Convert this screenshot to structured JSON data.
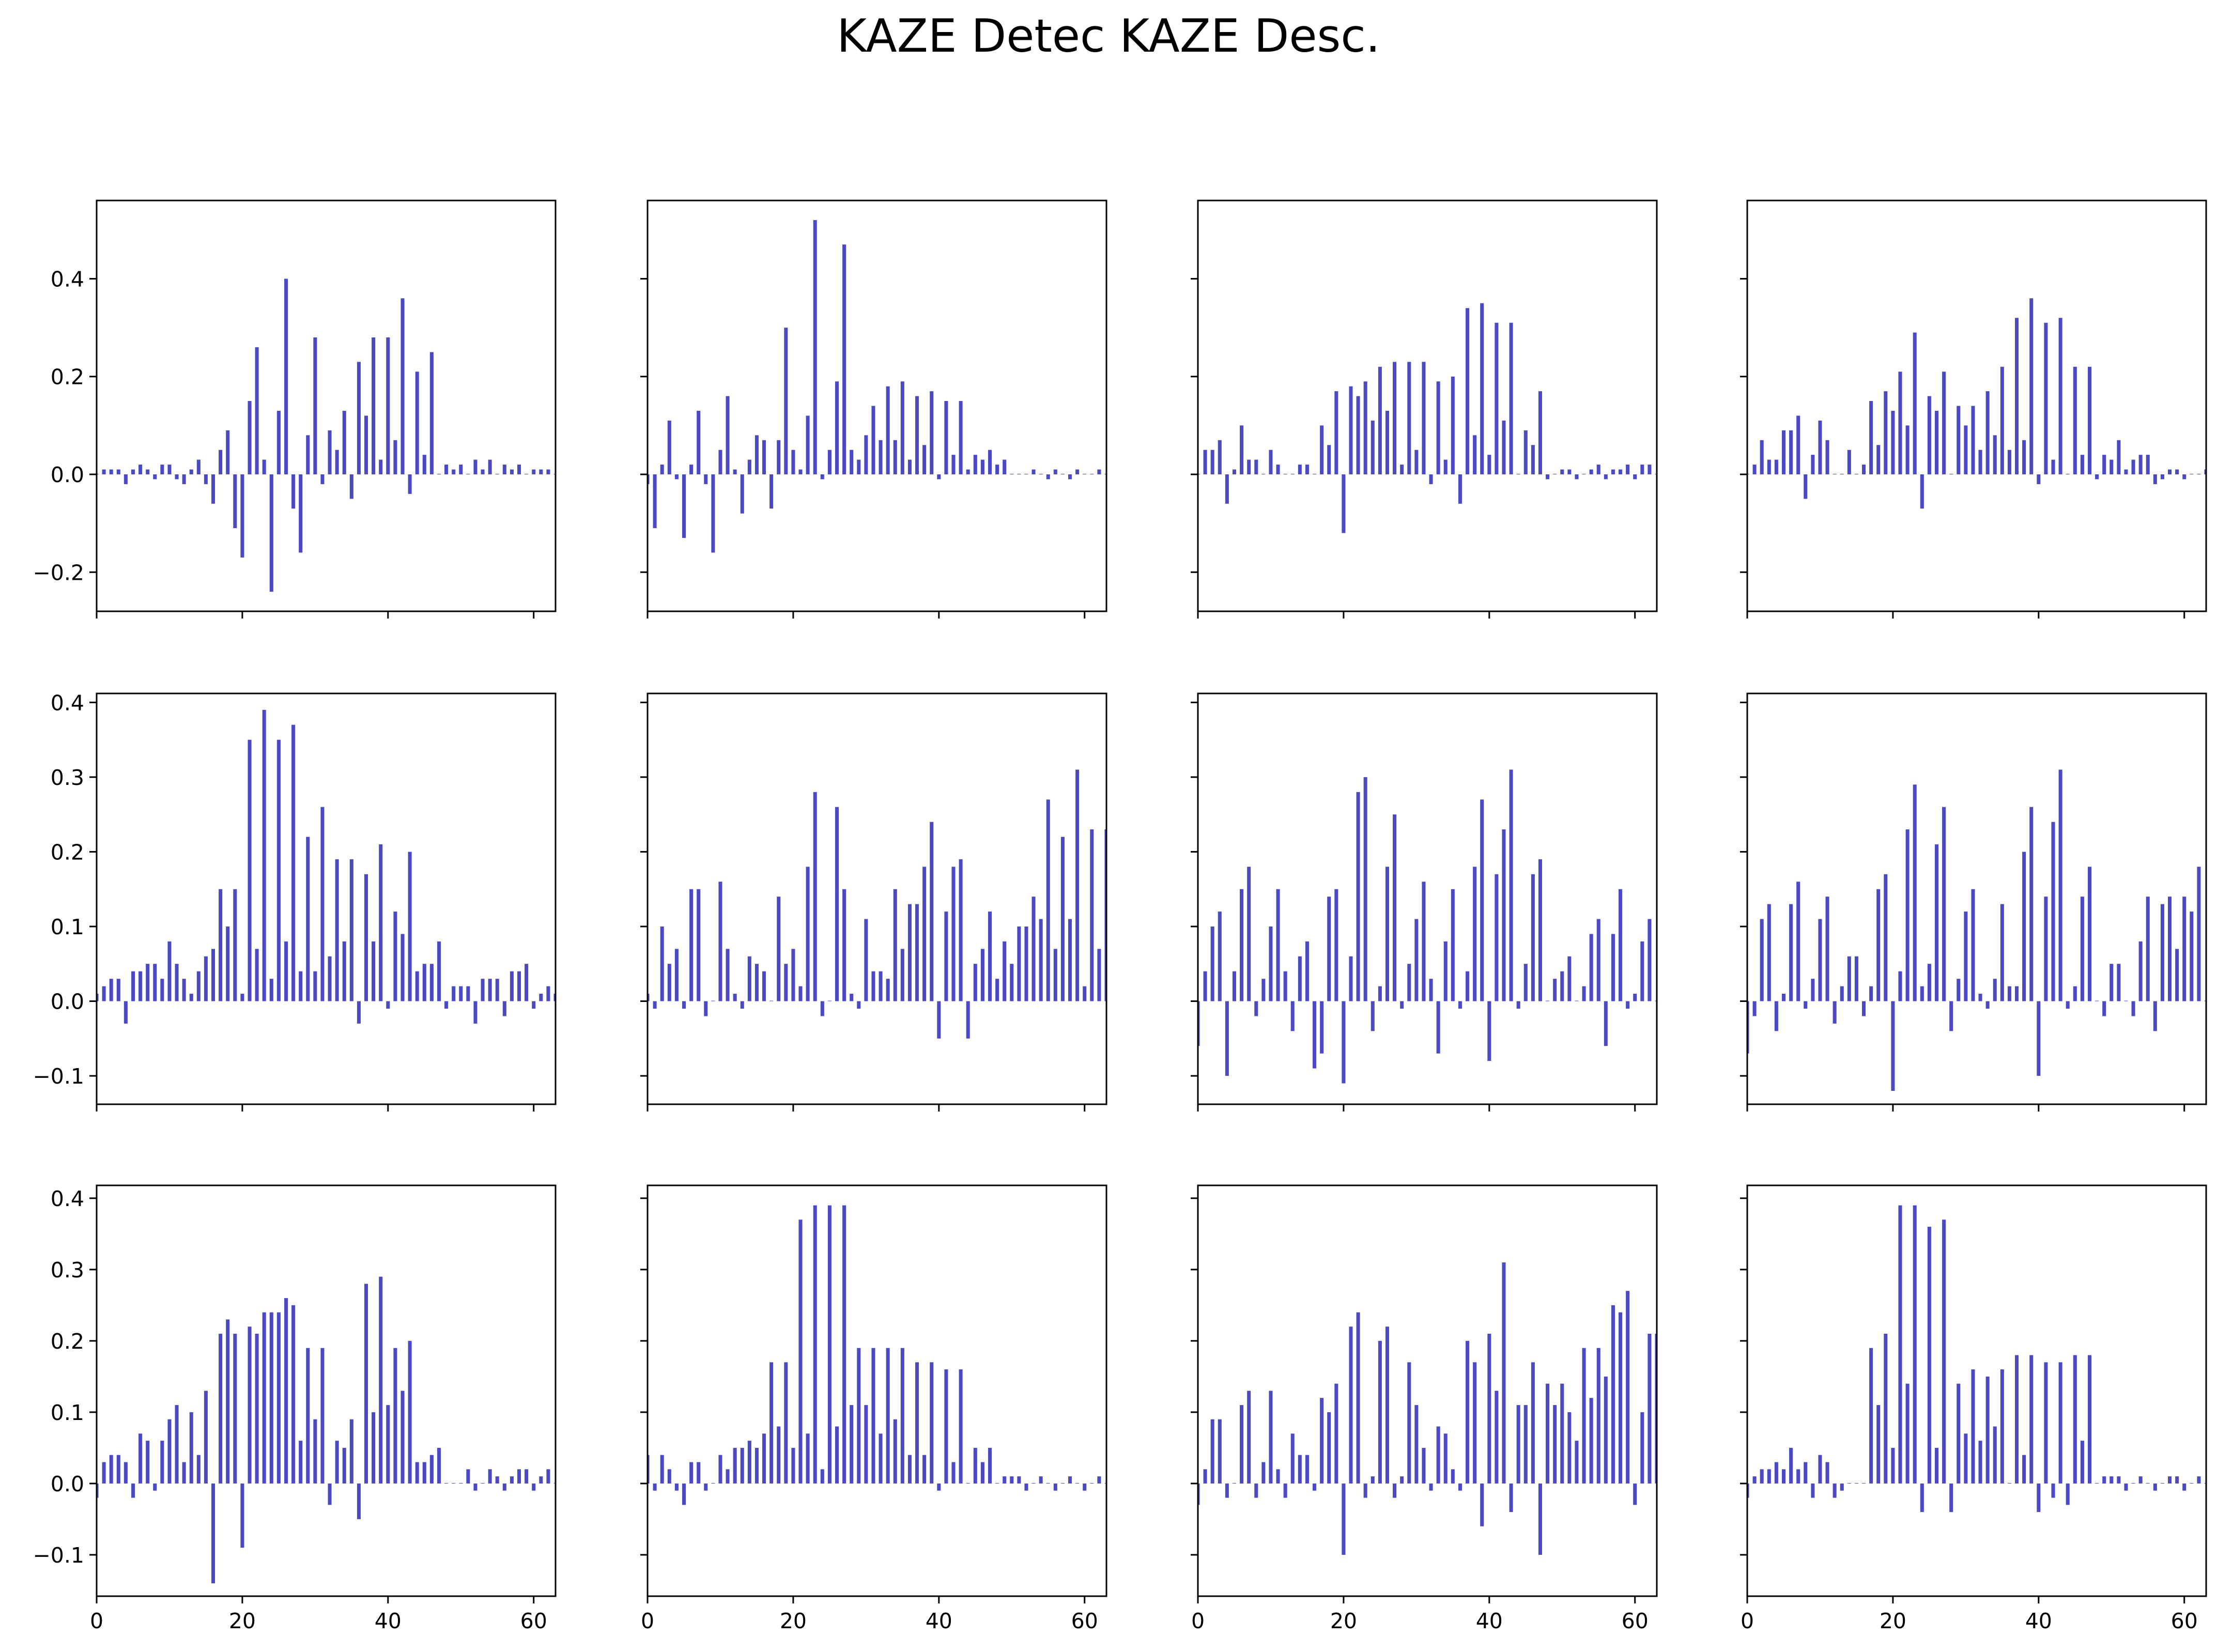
{
  "title": "KAZE Detec KAZE Desc.",
  "colors": {
    "bar": "#4b4ac4",
    "axis": "#000000",
    "background": "#ffffff"
  },
  "chart_data": {
    "type": "bar",
    "title": "KAZE Detec KAZE Desc.",
    "layout": "3 rows x 4 columns of bar subplots; shared x axis per column, shared y axis per row",
    "x": "bin index 0-63",
    "xlim": [
      0,
      63
    ],
    "xticks": [
      0,
      20,
      40,
      60
    ],
    "xtick_labels": [
      "0",
      "20",
      "40",
      "60"
    ],
    "xticklabels_shown_on": "bottom row only",
    "rows": [
      {
        "ylim": [
          -0.28,
          0.56
        ],
        "yticks": [
          -0.2,
          0.0,
          0.2,
          0.4
        ],
        "ytick_labels": [
          "−0.2",
          "0.0",
          "0.2",
          "0.4"
        ]
      },
      {
        "ylim": [
          -0.138,
          0.412
        ],
        "yticks": [
          -0.1,
          0.0,
          0.1,
          0.2,
          0.3,
          0.4
        ],
        "ytick_labels": [
          "−0.1",
          "0.0",
          "0.1",
          "0.2",
          "0.3",
          "0.4"
        ]
      },
      {
        "ylim": [
          -0.158,
          0.418
        ],
        "yticks": [
          -0.1,
          0.0,
          0.1,
          0.2,
          0.3,
          0.4
        ],
        "ytick_labels": [
          "−0.1",
          "0.0",
          "0.1",
          "0.2",
          "0.3",
          "0.4"
        ]
      }
    ],
    "panels": [
      {
        "row": 0,
        "col": 0,
        "values": [
          0.0,
          0.01,
          0.01,
          0.01,
          -0.02,
          0.01,
          0.02,
          0.01,
          -0.01,
          0.02,
          0.02,
          -0.01,
          -0.02,
          0.01,
          0.03,
          -0.02,
          -0.06,
          0.05,
          0.09,
          -0.11,
          -0.17,
          0.15,
          0.26,
          0.03,
          -0.24,
          0.13,
          0.4,
          -0.07,
          -0.16,
          0.08,
          0.28,
          -0.02,
          0.09,
          0.05,
          0.13,
          -0.05,
          0.23,
          0.12,
          0.28,
          0.03,
          0.28,
          0.07,
          0.36,
          -0.04,
          0.21,
          0.04,
          0.25,
          0.0,
          0.02,
          0.01,
          0.02,
          0.0,
          0.03,
          0.01,
          0.03,
          0.0,
          0.02,
          0.01,
          0.02,
          0.0,
          0.01,
          0.01,
          0.01,
          0.0
        ]
      },
      {
        "row": 0,
        "col": 1,
        "values": [
          -0.02,
          -0.11,
          0.02,
          0.11,
          -0.01,
          -0.13,
          0.02,
          0.13,
          -0.02,
          -0.16,
          0.05,
          0.16,
          0.01,
          -0.08,
          0.03,
          0.08,
          0.07,
          -0.07,
          0.07,
          0.3,
          0.05,
          0.01,
          0.12,
          0.52,
          -0.01,
          0.05,
          0.19,
          0.47,
          0.05,
          0.03,
          0.08,
          0.14,
          0.07,
          0.18,
          0.07,
          0.19,
          0.03,
          0.16,
          0.06,
          0.17,
          -0.01,
          0.15,
          0.04,
          0.15,
          0.01,
          0.04,
          0.03,
          0.05,
          0.02,
          0.03,
          0.0,
          0.0,
          0.0,
          0.01,
          0.0,
          -0.01,
          0.01,
          0.0,
          -0.01,
          0.01,
          0.0,
          0.0,
          0.01,
          0.0
        ]
      },
      {
        "row": 0,
        "col": 2,
        "values": [
          0.0,
          0.05,
          0.05,
          0.07,
          -0.06,
          0.01,
          0.1,
          0.03,
          0.03,
          0.0,
          0.05,
          0.02,
          0.0,
          0.0,
          0.02,
          0.02,
          0.0,
          0.1,
          0.06,
          0.17,
          -0.12,
          0.18,
          0.16,
          0.19,
          0.11,
          0.22,
          0.13,
          0.23,
          0.02,
          0.23,
          0.05,
          0.23,
          -0.02,
          0.19,
          0.03,
          0.2,
          -0.06,
          0.34,
          0.08,
          0.35,
          0.04,
          0.31,
          0.11,
          0.31,
          0.0,
          0.09,
          0.06,
          0.17,
          -0.01,
          0.0,
          0.01,
          0.01,
          -0.01,
          0.0,
          0.01,
          0.02,
          -0.01,
          0.01,
          0.01,
          0.02,
          -0.01,
          0.02,
          0.02,
          0.0
        ]
      },
      {
        "row": 0,
        "col": 3,
        "values": [
          0.0,
          0.02,
          0.07,
          0.03,
          0.03,
          0.09,
          0.09,
          0.12,
          -0.05,
          0.04,
          0.11,
          0.07,
          0.0,
          0.0,
          0.05,
          0.0,
          0.02,
          0.15,
          0.06,
          0.17,
          0.13,
          0.21,
          0.1,
          0.29,
          -0.07,
          0.16,
          0.13,
          0.21,
          0.0,
          0.14,
          0.1,
          0.14,
          0.05,
          0.17,
          0.08,
          0.22,
          0.05,
          0.32,
          0.07,
          0.36,
          -0.02,
          0.31,
          0.03,
          0.32,
          0.0,
          0.22,
          0.04,
          0.22,
          -0.01,
          0.04,
          0.03,
          0.07,
          0.01,
          0.03,
          0.04,
          0.04,
          -0.02,
          -0.01,
          0.01,
          0.01,
          -0.01,
          0.0,
          0.0,
          0.01
        ]
      },
      {
        "row": 1,
        "col": 0,
        "values": [
          0.01,
          0.02,
          0.03,
          0.03,
          -0.03,
          0.04,
          0.04,
          0.05,
          0.05,
          0.03,
          0.08,
          0.05,
          0.03,
          0.01,
          0.04,
          0.06,
          0.07,
          0.15,
          0.1,
          0.15,
          0.01,
          0.35,
          0.07,
          0.39,
          0.03,
          0.35,
          0.08,
          0.37,
          0.04,
          0.22,
          0.04,
          0.26,
          0.06,
          0.19,
          0.08,
          0.19,
          -0.03,
          0.17,
          0.08,
          0.21,
          -0.01,
          0.12,
          0.09,
          0.2,
          0.04,
          0.05,
          0.05,
          0.08,
          -0.01,
          0.02,
          0.02,
          0.02,
          -0.03,
          0.03,
          0.03,
          0.03,
          -0.02,
          0.04,
          0.04,
          0.05,
          -0.01,
          0.01,
          0.02,
          0.01
        ]
      },
      {
        "row": 1,
        "col": 1,
        "values": [
          0.01,
          -0.01,
          0.1,
          0.05,
          0.07,
          -0.01,
          0.15,
          0.15,
          -0.02,
          0.0,
          0.16,
          0.07,
          0.01,
          -0.01,
          0.06,
          0.05,
          0.04,
          0.0,
          0.14,
          0.05,
          0.07,
          0.02,
          0.18,
          0.28,
          -0.02,
          0.0,
          0.26,
          0.15,
          0.01,
          -0.01,
          0.11,
          0.04,
          0.04,
          0.03,
          0.15,
          0.07,
          0.13,
          0.13,
          0.18,
          0.24,
          -0.05,
          0.12,
          0.18,
          0.19,
          -0.05,
          0.05,
          0.07,
          0.12,
          0.03,
          0.08,
          0.05,
          0.1,
          0.1,
          0.14,
          0.11,
          0.27,
          0.07,
          0.22,
          0.11,
          0.31,
          0.02,
          0.23,
          0.07,
          0.23
        ]
      },
      {
        "row": 1,
        "col": 2,
        "values": [
          -0.06,
          0.04,
          0.1,
          0.12,
          -0.1,
          0.04,
          0.15,
          0.18,
          -0.02,
          0.03,
          0.1,
          0.15,
          0.04,
          -0.04,
          0.06,
          0.08,
          -0.09,
          -0.07,
          0.14,
          0.15,
          -0.11,
          0.06,
          0.28,
          0.3,
          -0.04,
          0.02,
          0.18,
          0.25,
          -0.01,
          0.05,
          0.11,
          0.16,
          0.03,
          -0.07,
          0.08,
          0.15,
          -0.01,
          0.04,
          0.18,
          0.27,
          -0.08,
          0.17,
          0.23,
          0.31,
          -0.01,
          0.05,
          0.17,
          0.19,
          0.0,
          0.03,
          0.04,
          0.06,
          0.0,
          0.02,
          0.09,
          0.11,
          -0.06,
          0.09,
          0.15,
          -0.01,
          0.01,
          0.08,
          0.11,
          0.0
        ]
      },
      {
        "row": 1,
        "col": 3,
        "values": [
          -0.07,
          -0.02,
          0.11,
          0.13,
          -0.04,
          0.01,
          0.13,
          0.16,
          -0.01,
          0.03,
          0.11,
          0.14,
          -0.03,
          0.02,
          0.06,
          0.06,
          -0.02,
          0.02,
          0.15,
          0.17,
          -0.12,
          0.04,
          0.23,
          0.29,
          0.02,
          0.05,
          0.21,
          0.26,
          -0.04,
          0.03,
          0.12,
          0.15,
          0.01,
          -0.01,
          0.03,
          0.13,
          0.02,
          0.02,
          0.2,
          0.26,
          -0.1,
          0.14,
          0.24,
          0.31,
          -0.01,
          0.02,
          0.14,
          0.18,
          0.0,
          -0.02,
          0.05,
          0.05,
          0.0,
          -0.02,
          0.08,
          0.14,
          -0.04,
          0.13,
          0.14,
          0.07,
          0.14,
          0.12,
          0.18,
          0.0
        ]
      },
      {
        "row": 2,
        "col": 0,
        "values": [
          -0.02,
          0.03,
          0.04,
          0.04,
          0.03,
          -0.02,
          0.07,
          0.06,
          -0.01,
          0.06,
          0.09,
          0.11,
          0.03,
          0.1,
          0.04,
          0.13,
          -0.14,
          0.21,
          0.23,
          0.21,
          -0.09,
          0.22,
          0.21,
          0.24,
          0.24,
          0.24,
          0.26,
          0.25,
          0.06,
          0.19,
          0.09,
          0.19,
          -0.03,
          0.06,
          0.05,
          0.09,
          -0.05,
          0.28,
          0.1,
          0.29,
          0.11,
          0.19,
          0.13,
          0.2,
          0.03,
          0.03,
          0.04,
          0.05,
          0.0,
          0.0,
          0.0,
          0.02,
          -0.01,
          0.0,
          0.02,
          0.01,
          -0.01,
          0.01,
          0.02,
          0.02,
          -0.01,
          0.01,
          0.02,
          0.0
        ]
      },
      {
        "row": 2,
        "col": 1,
        "values": [
          0.04,
          -0.01,
          0.04,
          0.02,
          -0.01,
          -0.03,
          0.03,
          0.03,
          -0.01,
          0.0,
          0.04,
          0.02,
          0.05,
          0.05,
          0.06,
          0.05,
          0.07,
          0.17,
          0.08,
          0.17,
          0.05,
          0.37,
          0.07,
          0.39,
          0.02,
          0.39,
          0.08,
          0.39,
          0.11,
          0.19,
          0.11,
          0.19,
          0.07,
          0.19,
          0.09,
          0.19,
          0.04,
          0.17,
          0.04,
          0.17,
          -0.01,
          0.16,
          0.03,
          0.16,
          0.0,
          0.05,
          0.03,
          0.05,
          0.0,
          0.01,
          0.01,
          0.01,
          -0.01,
          0.0,
          0.01,
          0.0,
          -0.01,
          0.0,
          0.01,
          0.0,
          -0.01,
          0.0,
          0.01,
          0.0
        ]
      },
      {
        "row": 2,
        "col": 2,
        "values": [
          -0.03,
          0.02,
          0.09,
          0.09,
          -0.02,
          0.0,
          0.11,
          0.13,
          -0.02,
          0.03,
          0.13,
          0.02,
          -0.02,
          0.07,
          0.04,
          0.04,
          -0.01,
          0.12,
          0.1,
          0.14,
          -0.1,
          0.22,
          0.24,
          -0.02,
          0.01,
          0.2,
          0.22,
          -0.02,
          0.01,
          0.17,
          0.11,
          0.05,
          -0.01,
          0.08,
          0.07,
          0.02,
          -0.01,
          0.2,
          0.17,
          -0.06,
          0.21,
          0.13,
          0.31,
          -0.04,
          0.11,
          0.11,
          0.17,
          -0.1,
          0.14,
          0.11,
          0.14,
          0.1,
          0.06,
          0.19,
          0.12,
          0.19,
          0.15,
          0.25,
          0.24,
          0.27,
          -0.03,
          0.1,
          0.21,
          0.21
        ]
      },
      {
        "row": 2,
        "col": 3,
        "values": [
          -0.02,
          0.01,
          0.02,
          0.02,
          0.03,
          0.02,
          0.05,
          0.02,
          0.03,
          -0.02,
          0.04,
          0.03,
          -0.02,
          -0.01,
          0.0,
          0.0,
          0.0,
          0.19,
          0.11,
          0.21,
          0.05,
          0.39,
          0.14,
          0.39,
          -0.04,
          0.36,
          0.05,
          0.37,
          -0.04,
          0.14,
          0.07,
          0.16,
          0.06,
          0.15,
          0.08,
          0.16,
          0.0,
          0.18,
          0.04,
          0.18,
          -0.04,
          0.17,
          -0.02,
          0.17,
          -0.03,
          0.18,
          0.06,
          0.18,
          0.0,
          0.01,
          0.01,
          0.01,
          -0.01,
          0.0,
          0.01,
          0.0,
          -0.01,
          0.0,
          0.01,
          0.01,
          -0.01,
          0.0,
          0.01,
          0.0
        ]
      }
    ]
  }
}
